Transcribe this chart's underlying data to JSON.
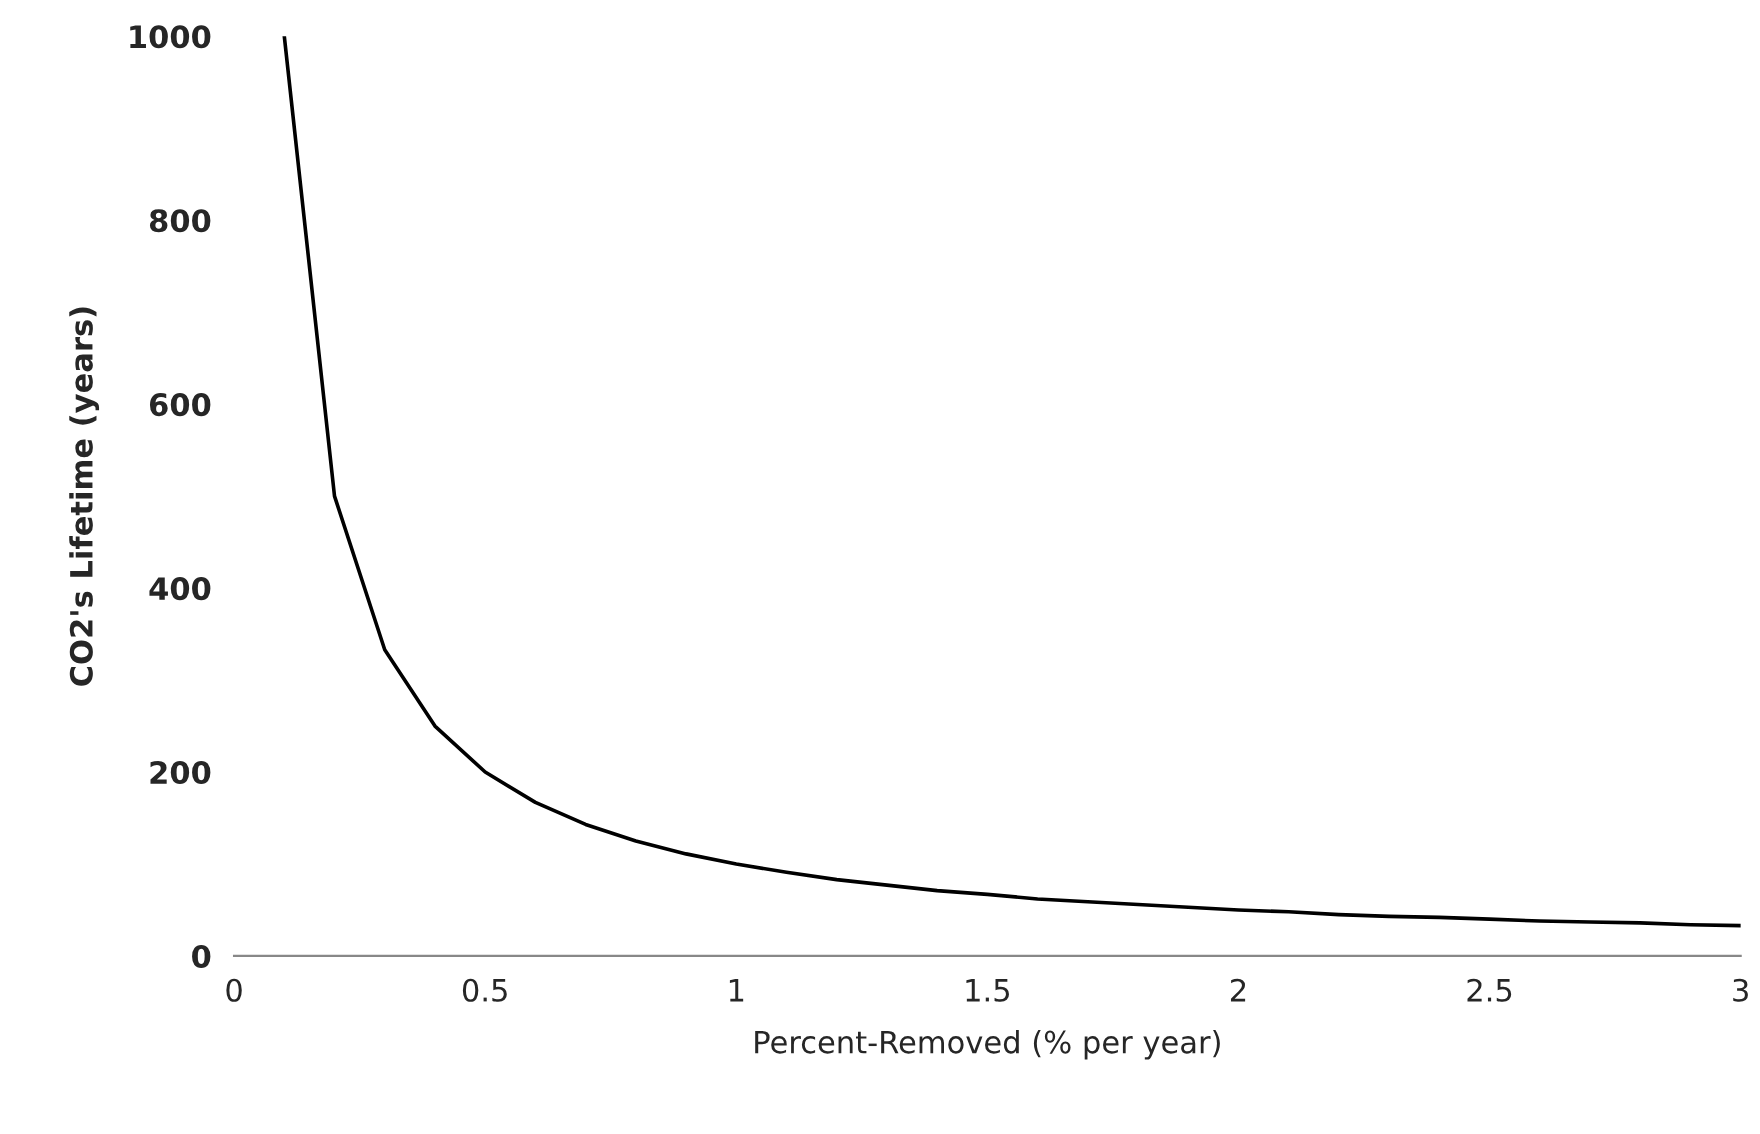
{
  "chart_data": {
    "type": "line",
    "xlabel": "Percent-Removed (% per year)",
    "ylabel": "CO2's Lifetime (years)",
    "x": [
      0.1,
      0.2,
      0.3,
      0.4,
      0.5,
      0.6,
      0.7,
      0.8,
      0.9,
      1.0,
      1.1,
      1.2,
      1.3,
      1.4,
      1.5,
      1.6,
      1.7,
      1.8,
      1.9,
      2.0,
      2.1,
      2.2,
      2.3,
      2.4,
      2.5,
      2.6,
      2.7,
      2.8,
      2.9,
      3.0
    ],
    "series": [
      {
        "color": "#000000",
        "values": [
          1000,
          500,
          333,
          250,
          200,
          167,
          143,
          125,
          111,
          100,
          91,
          83,
          77,
          71,
          67,
          62,
          59,
          56,
          53,
          50,
          48,
          45,
          43,
          42,
          40,
          38,
          37,
          36,
          34,
          33
        ]
      }
    ],
    "xlim": [
      0,
      3
    ],
    "ylim": [
      0,
      1000
    ],
    "xticks": [
      0,
      0.5,
      1,
      1.5,
      2,
      2.5,
      3
    ],
    "yticks": [
      0,
      200,
      400,
      600,
      800,
      1000
    ],
    "grid": false,
    "marker": "none",
    "line_style": "solid"
  }
}
